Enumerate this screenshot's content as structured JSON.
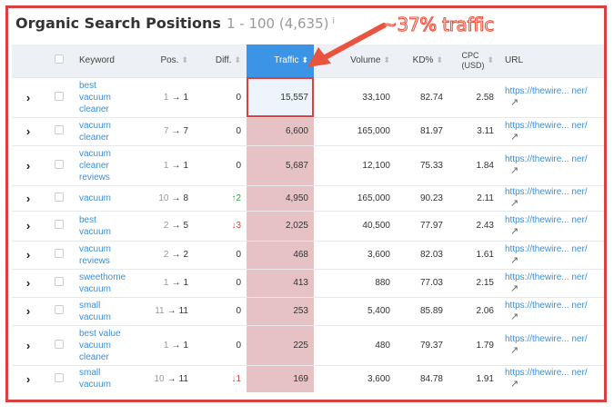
{
  "header": {
    "title": "Organic Search Positions",
    "range": "1 - 100 (4,635)",
    "info_symbol": "i"
  },
  "annotation": {
    "text": "~37% traffic",
    "color": "#e8543f"
  },
  "columns": {
    "keyword": "Keyword",
    "pos": "Pos.",
    "diff": "Diff.",
    "traffic": "Traffic",
    "volume": "Volume",
    "kd": "KD%",
    "cpc_line1": "CPC",
    "cpc_line2": "(USD)",
    "url": "URL"
  },
  "rows": [
    {
      "keyword": [
        "best",
        "vacuum",
        "cleaner"
      ],
      "pos_from": "1",
      "pos_to": "1",
      "diff": "0",
      "diff_dir": "none",
      "traffic": "15,557",
      "volume": "33,100",
      "kd": "82.74",
      "cpc": "2.58",
      "url": "https://thewire... ner/"
    },
    {
      "keyword": [
        "vacuum",
        "cleaner"
      ],
      "pos_from": "7",
      "pos_to": "7",
      "diff": "0",
      "diff_dir": "none",
      "traffic": "6,600",
      "volume": "165,000",
      "kd": "81.97",
      "cpc": "3.11",
      "url": "https://thewire... ner/"
    },
    {
      "keyword": [
        "vacuum",
        "cleaner",
        "reviews"
      ],
      "pos_from": "1",
      "pos_to": "1",
      "diff": "0",
      "diff_dir": "none",
      "traffic": "5,687",
      "volume": "12,100",
      "kd": "75.33",
      "cpc": "1.84",
      "url": "https://thewire... ner/"
    },
    {
      "keyword": [
        "vacuum"
      ],
      "pos_from": "10",
      "pos_to": "8",
      "diff": "↑2",
      "diff_dir": "up",
      "traffic": "4,950",
      "volume": "165,000",
      "kd": "90.23",
      "cpc": "2.11",
      "url": "https://thewire... ner/"
    },
    {
      "keyword": [
        "best",
        "vacuum"
      ],
      "pos_from": "2",
      "pos_to": "5",
      "diff": "↓3",
      "diff_dir": "down",
      "traffic": "2,025",
      "volume": "40,500",
      "kd": "77.97",
      "cpc": "2.43",
      "url": "https://thewire... ner/"
    },
    {
      "keyword": [
        "vacuum",
        "reviews"
      ],
      "pos_from": "2",
      "pos_to": "2",
      "diff": "0",
      "diff_dir": "none",
      "traffic": "468",
      "volume": "3,600",
      "kd": "82.03",
      "cpc": "1.61",
      "url": "https://thewire... ner/"
    },
    {
      "keyword": [
        "sweethome",
        "vacuum"
      ],
      "pos_from": "1",
      "pos_to": "1",
      "diff": "0",
      "diff_dir": "none",
      "traffic": "413",
      "volume": "880",
      "kd": "77.03",
      "cpc": "2.15",
      "url": "https://thewire... ner/"
    },
    {
      "keyword": [
        "small",
        "vacuum"
      ],
      "pos_from": "11",
      "pos_to": "11",
      "diff": "0",
      "diff_dir": "none",
      "traffic": "253",
      "volume": "5,400",
      "kd": "85.89",
      "cpc": "2.06",
      "url": "https://thewire... ner/"
    },
    {
      "keyword": [
        "best value",
        "vacuum",
        "cleaner"
      ],
      "pos_from": "1",
      "pos_to": "1",
      "diff": "0",
      "diff_dir": "none",
      "traffic": "225",
      "volume": "480",
      "kd": "79.37",
      "cpc": "1.79",
      "url": "https://thewire... ner/"
    },
    {
      "keyword": [
        "small",
        "vacuum"
      ],
      "pos_from": "10",
      "pos_to": "11",
      "diff": "↓1",
      "diff_dir": "down",
      "traffic": "169",
      "volume": "3,600",
      "kd": "84.78",
      "cpc": "1.91",
      "url": "https://thewire... ner/"
    }
  ]
}
